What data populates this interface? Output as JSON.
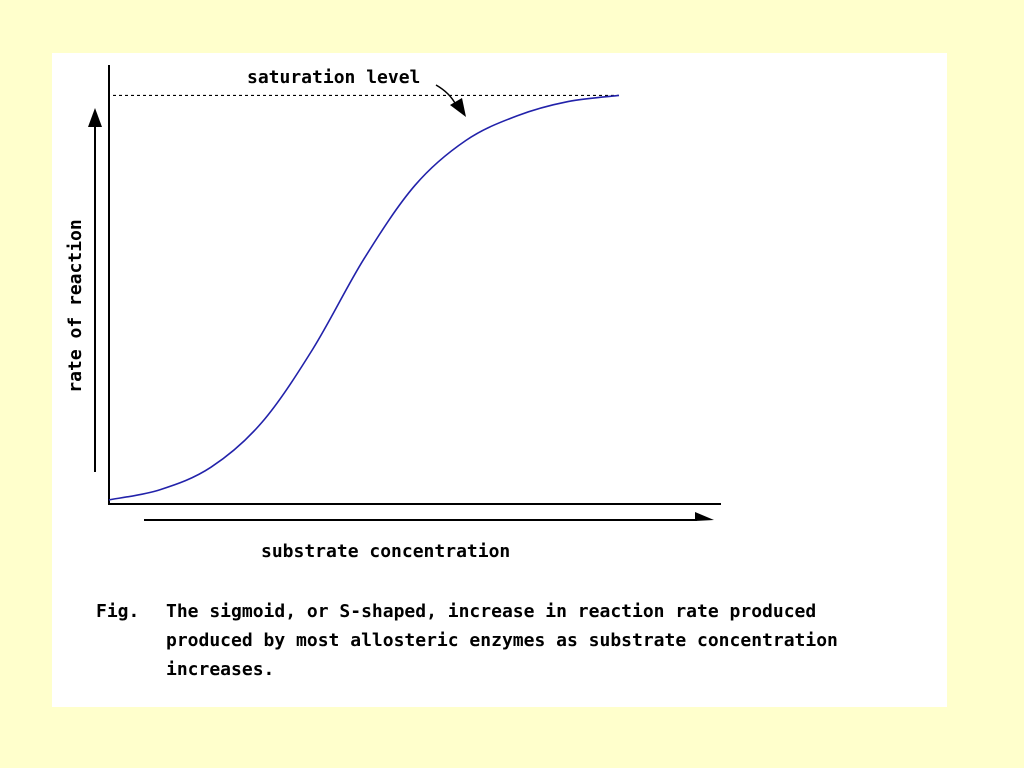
{
  "colors": {
    "page_background": "#ffffcc",
    "panel_background": "#ffffff",
    "curve": "#2222aa",
    "axes": "#000000"
  },
  "chart_data": {
    "type": "line",
    "title": "",
    "xlabel": "substrate concentration",
    "ylabel": "rate of reaction",
    "xlim": [
      0,
      1.2
    ],
    "ylim": [
      0,
      1.05
    ],
    "ticks": "none",
    "grid": false,
    "series": [
      {
        "values_shape": "sigmoid",
        "x": [
          0,
          0.1,
          0.2,
          0.3,
          0.4,
          0.5,
          0.6,
          0.7,
          0.8,
          0.9,
          1.0
        ],
        "y": [
          0.01,
          0.035,
          0.09,
          0.2,
          0.38,
          0.6,
          0.78,
          0.89,
          0.95,
          0.985,
          1.0
        ]
      }
    ],
    "reference_line": {
      "y": 1.0,
      "style": "dotted"
    },
    "annotations": [
      {
        "text": "saturation level"
      }
    ]
  },
  "caption": {
    "fig_label": "Fig.",
    "text": "The sigmoid, or S-shaped, increase in reaction rate produced\nproduced by most allosteric enzymes as substrate concentration\nincreases."
  }
}
